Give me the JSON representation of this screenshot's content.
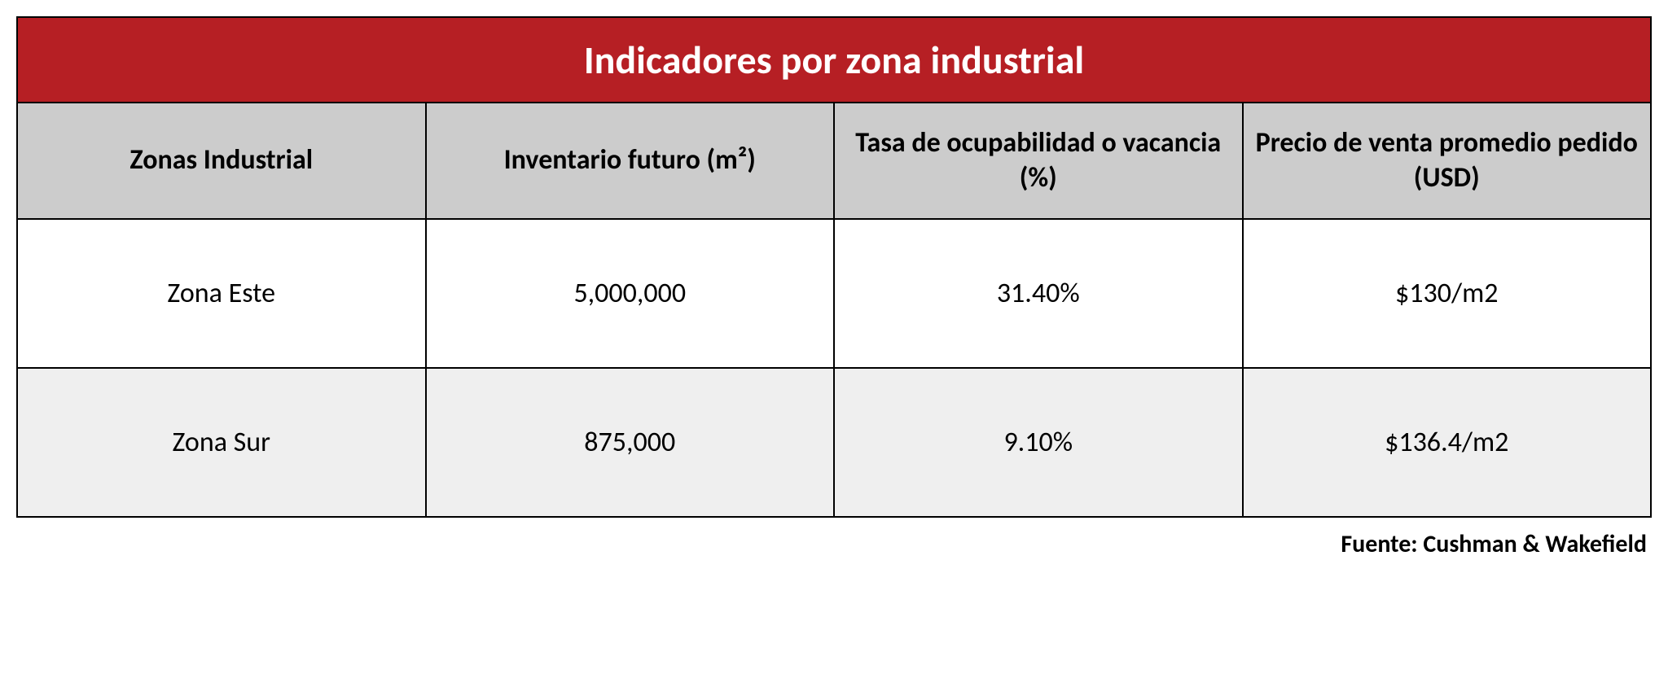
{
  "table": {
    "title": "Indicadores por zona industrial",
    "title_bg": "#b61f24",
    "title_color": "#ffffff",
    "header_bg": "#cccccc",
    "border_color": "#000000",
    "row_odd_bg": "#ffffff",
    "row_even_bg": "#efefef",
    "columns": [
      "Zonas Industrial",
      "Inventario futuro (m²)",
      "Tasa de ocupabilidad o vacancia (%)",
      "Precio de venta promedio pedido (USD)"
    ],
    "rows": [
      {
        "zone": "Zona Este",
        "inventory": "5,000,000",
        "vacancy": "31.40%",
        "price": "$130/m2"
      },
      {
        "zone": "Zona Sur",
        "inventory": "875,000",
        "vacancy": "9.10%",
        "price": "$136.4/m2"
      }
    ]
  },
  "source_label": "Fuente: Cushman & Wakefield"
}
